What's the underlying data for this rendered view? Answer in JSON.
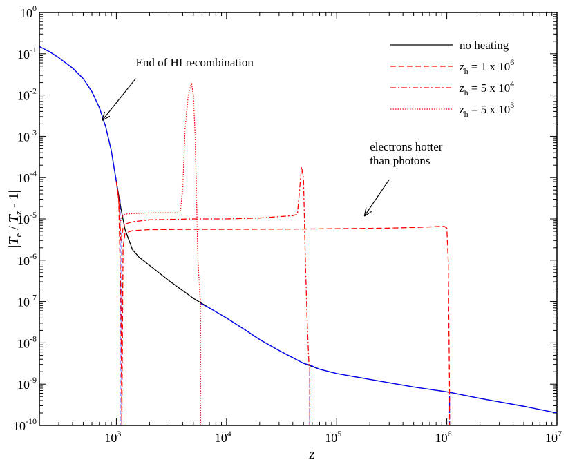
{
  "chart_data": {
    "type": "line",
    "xscale": "log",
    "yscale": "log",
    "xlim": [
      200,
      10000000
    ],
    "ylim": [
      1e-10,
      1
    ],
    "xlabel": "z",
    "ylabel": {
      "prefix": "|",
      "t1": "T",
      "s1": "e",
      "mid": " / ",
      "t2": "T",
      "s2": "z",
      "suffix": " - 1|"
    },
    "x_ticks": [
      {
        "value": 1000,
        "base": "10",
        "exp": "3"
      },
      {
        "value": 10000,
        "base": "10",
        "exp": "4"
      },
      {
        "value": 100000,
        "base": "10",
        "exp": "5"
      },
      {
        "value": 1000000,
        "base": "10",
        "exp": "6"
      },
      {
        "value": 10000000,
        "base": "10",
        "exp": "7"
      }
    ],
    "y_ticks": [
      {
        "value": 1,
        "base": "10",
        "exp": "0"
      },
      {
        "value": 0.1,
        "base": "10",
        "exp": "-1"
      },
      {
        "value": 0.01,
        "base": "10",
        "exp": "-2"
      },
      {
        "value": 0.001,
        "base": "10",
        "exp": "-3"
      },
      {
        "value": 0.0001,
        "base": "10",
        "exp": "-4"
      },
      {
        "value": 1e-05,
        "base": "10",
        "exp": "-5"
      },
      {
        "value": 1e-06,
        "base": "10",
        "exp": "-6"
      },
      {
        "value": 1e-07,
        "base": "10",
        "exp": "-7"
      },
      {
        "value": 1e-08,
        "base": "10",
        "exp": "-8"
      },
      {
        "value": 1e-09,
        "base": "10",
        "exp": "-9"
      },
      {
        "value": 1e-10,
        "base": "10",
        "exp": "-10"
      }
    ],
    "series": [
      {
        "name": "no heating",
        "color": "#000000",
        "dash": "solid",
        "x": [
          200,
          250,
          300,
          400,
          500,
          600,
          700,
          800,
          900,
          1000,
          1100,
          1200,
          1400,
          1600,
          2000,
          3000,
          5000,
          7000,
          10000,
          15000,
          20000,
          30000,
          50000,
          70000,
          100000,
          200000,
          500000,
          1000000,
          2000000,
          5000000,
          10000000
        ],
        "y": [
          0.15,
          0.11,
          0.08,
          0.045,
          0.025,
          0.012,
          0.005,
          0.0017,
          0.00045,
          8e-05,
          1.8e-05,
          5.5e-06,
          1.8e-06,
          1.2e-06,
          7.5e-07,
          3.2e-07,
          1.2e-07,
          7e-08,
          4e-08,
          2e-08,
          1.2e-08,
          6.5e-09,
          3.2e-09,
          2.3e-09,
          1.8e-09,
          1.3e-09,
          8.5e-10,
          6.5e-10,
          4.5e-10,
          2.9e-10,
          2e-10
        ]
      },
      {
        "name": "",
        "color": "#0000ff",
        "dash": "solid",
        "x": [
          200,
          250,
          300,
          400,
          500,
          600,
          700,
          800,
          900,
          1000,
          1050
        ],
        "y": [
          0.15,
          0.11,
          0.08,
          0.045,
          0.025,
          0.012,
          0.005,
          0.0017,
          0.00045,
          8e-05,
          3e-05
        ]
      },
      {
        "name": "",
        "color": "#0000ff",
        "dash": "solid",
        "x": [
          5800,
          7000,
          10000,
          15000,
          20000,
          30000,
          50000,
          57000
        ],
        "y": [
          9e-08,
          7e-08,
          4e-08,
          2e-08,
          1.2e-08,
          6.5e-09,
          3.2e-09,
          2.9e-09
        ]
      },
      {
        "name": "",
        "color": "#0000ff",
        "dash": "solid",
        "x": [
          57000,
          70000,
          100000,
          200000,
          500000,
          1000000,
          1080000,
          2000000,
          5000000,
          10000000
        ],
        "y": [
          2.9e-09,
          2.3e-09,
          1.8e-09,
          1.3e-09,
          8.5e-10,
          6.5e-10,
          6.3e-10,
          4.5e-10,
          2.9e-10,
          2e-10
        ]
      },
      {
        "name": "",
        "color": "#0000ff",
        "dash": "6,3",
        "x": [
          1080,
          1080,
          1120,
          1120
        ],
        "y": [
          3e-05,
          1e-10,
          1e-10,
          5e-06
        ]
      },
      {
        "name": "",
        "color": "#0000ff",
        "dash": "6,3",
        "x": [
          1060000,
          1060000
        ],
        "y": [
          1e-10,
          6.5e-10
        ]
      },
      {
        "name": "",
        "color": "#0000ff",
        "dash": "6,3",
        "x": [
          57000,
          57000
        ],
        "y": [
          1e-10,
          2.5e-09
        ]
      },
      {
        "name": "",
        "color": "#0000ff",
        "dash": "1.5,2",
        "x": [
          5800,
          5800
        ],
        "y": [
          1e-10,
          9e-08
        ]
      },
      {
        "name": "z_h = 1 x 10^6",
        "color": "#ff0000",
        "dash": "8,4",
        "x": [
          1000,
          1050,
          1100,
          1120,
          1150,
          1200,
          1400,
          2000,
          5000,
          10000,
          50000,
          100000,
          300000,
          600000,
          900000,
          950000,
          1000000,
          1030000,
          1060000,
          1060000
        ],
        "y": [
          8e-05,
          3e-05,
          1e-07,
          1e-10,
          2e-06,
          4.5e-06,
          5.2e-06,
          5.5e-06,
          5.6e-06,
          5.6e-06,
          5.7e-06,
          5.8e-06,
          6e-06,
          6.3e-06,
          6.6e-06,
          6.6e-06,
          6e-06,
          1e-06,
          6.5e-10,
          1e-10
        ]
      },
      {
        "name": "z_h = 5 x 10^4",
        "color": "#ff0000",
        "dash": "8,3,2,3",
        "x": [
          1000,
          1050,
          1100,
          1150,
          1200,
          1400,
          2000,
          5000,
          10000,
          20000,
          40000,
          44000,
          46000,
          48000,
          50000,
          52000,
          54000,
          56000,
          57000,
          57000
        ],
        "y": [
          8e-05,
          3e-05,
          3e-06,
          6e-06,
          7.5e-06,
          8.5e-06,
          9.5e-06,
          1e-05,
          1e-05,
          1.05e-05,
          1.2e-05,
          1.3e-05,
          5e-05,
          0.00018,
          0.0001,
          1e-06,
          3e-08,
          3e-09,
          2.5e-09,
          1e-10
        ]
      },
      {
        "name": "z_h = 5 x 10^3",
        "color": "#ff0000",
        "dash": "1.5,2",
        "x": [
          1000,
          1050,
          1080,
          1120,
          1200,
          1400,
          2000,
          3000,
          3800,
          4000,
          4200,
          4500,
          4800,
          5000,
          5200,
          5500,
          5800,
          5800
        ],
        "y": [
          8e-05,
          3e-05,
          8e-06,
          1.1e-05,
          1.3e-05,
          1.35e-05,
          1.4e-05,
          1.4e-05,
          1.4e-05,
          5e-05,
          0.0015,
          0.01,
          0.02,
          0.01,
          0.001,
          1e-06,
          9e-08,
          1e-10
        ]
      }
    ],
    "legend": {
      "placement": "top-right",
      "entries": [
        {
          "color": "#000000",
          "dash": "solid",
          "label": "no heating"
        },
        {
          "color": "#ff0000",
          "dash": "8,4",
          "var": "z",
          "sub": "h",
          "eq": " = 1 x 10",
          "exp": "6"
        },
        {
          "color": "#ff0000",
          "dash": "8,3,2,3",
          "var": "z",
          "sub": "h",
          "eq": " = 5 x 10",
          "exp": "4"
        },
        {
          "color": "#ff0000",
          "dash": "1.5,2",
          "var": "z",
          "sub": "h",
          "eq": " = 5 x 10",
          "exp": "3"
        }
      ]
    },
    "annotations": [
      {
        "lines": [
          "End of HI recombination"
        ],
        "x": 1500,
        "y": 0.05,
        "anchor": "start",
        "arrow_from": [
          1500,
          0.025
        ],
        "arrow_to": [
          750,
          0.0025
        ]
      },
      {
        "lines": [
          "electrons hotter",
          "than photons"
        ],
        "x": 200000,
        "y": 0.00045,
        "anchor": "start",
        "arrow_from": [
          300000,
          9e-05
        ],
        "arrow_to": [
          180000,
          1.2e-05
        ]
      }
    ]
  }
}
